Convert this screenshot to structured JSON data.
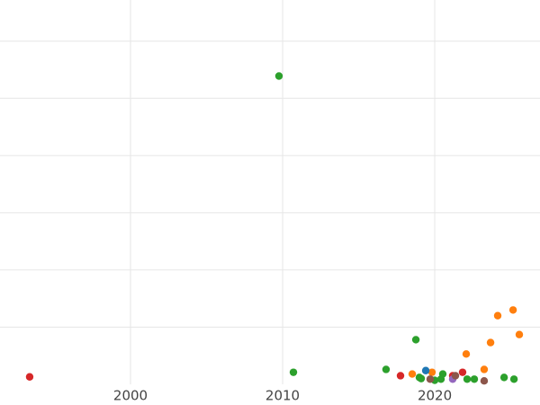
{
  "chart_data": {
    "type": "scatter",
    "xlim": [
      1991.42,
      2026.92
    ],
    "xticks": [
      2000,
      2010,
      2020
    ],
    "ylim": [
      0,
      6.72
    ],
    "yticks": [
      1,
      2,
      3,
      4,
      5,
      6
    ],
    "grid": true,
    "series": [
      {
        "color": "#2ca02c",
        "x": [
          2009.76,
          2010.71,
          2016.8,
          2018.76,
          2018.99,
          2019.11,
          2020.0,
          2020.41,
          2020.53,
          2022.13,
          2022.6,
          2024.56,
          2025.21
        ],
        "values": [
          5.39,
          0.21,
          0.26,
          0.78,
          0.12,
          0.1,
          0.07,
          0.09,
          0.18,
          0.09,
          0.09,
          0.12,
          0.09
        ]
      },
      {
        "color": "#d62728",
        "x": [
          1993.37,
          2017.75,
          2021.18,
          2021.83
        ],
        "values": [
          0.13,
          0.15,
          0.15,
          0.21
        ]
      },
      {
        "color": "#ff7f0e",
        "x": [
          2018.52,
          2019.82,
          2022.07,
          2023.25,
          2023.67,
          2024.14,
          2025.15,
          2025.56
        ],
        "values": [
          0.18,
          0.21,
          0.53,
          0.26,
          0.73,
          1.2,
          1.3,
          0.87
        ]
      },
      {
        "color": "#1f77b4",
        "x": [
          2019.41
        ],
        "values": [
          0.24
        ]
      },
      {
        "color": "#9467bd",
        "x": [
          2021.18
        ],
        "values": [
          0.09
        ]
      },
      {
        "color": "#8c564b",
        "x": [
          2019.7,
          2021.36,
          2023.25
        ],
        "values": [
          0.09,
          0.15,
          0.06
        ]
      }
    ]
  }
}
